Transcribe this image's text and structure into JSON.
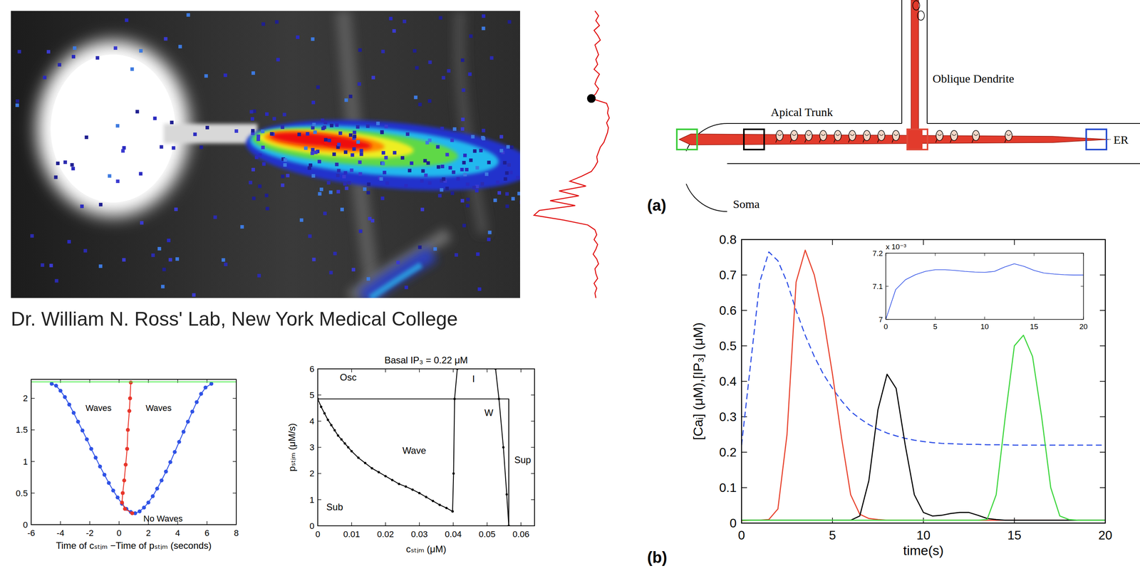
{
  "photo": {
    "caption": "Dr. William N. Ross' Lab, New York Medical College",
    "trace": {
      "lim": [
        0,
        100
      ],
      "dot_index": 18,
      "color": "#e01010",
      "values": [
        70,
        74,
        71,
        75,
        69,
        73,
        76,
        70,
        72,
        74,
        71,
        73,
        69,
        75,
        72,
        70,
        74,
        71,
        66,
        83,
        85,
        84,
        86,
        83,
        85,
        84,
        82,
        80,
        76,
        74,
        72,
        73,
        70,
        66,
        55,
        42,
        60,
        30,
        52,
        20,
        48,
        8,
        2,
        35,
        62,
        70,
        72,
        69,
        73,
        71,
        68,
        72,
        74,
        70,
        71,
        73,
        69,
        72,
        70,
        71
      ]
    }
  },
  "diagram": {
    "panel_label": "(a)",
    "labels": {
      "oblique": "Oblique Dendrite",
      "trunk": "Apical Trunk",
      "soma": "Soma",
      "er": "ER"
    },
    "boxes": [
      {
        "color": "#3dcc3d"
      },
      {
        "color": "#000000"
      },
      {
        "color": "#e04a3a"
      },
      {
        "color": "#2a4fd0"
      }
    ]
  },
  "chart_data": [
    {
      "type": "line",
      "xlabel": "Time of cₛₜᵢₘ −Time of pₛₜᵢₘ (seconds)",
      "xlim": [
        -6,
        8
      ],
      "xticks": [
        -6,
        -4,
        -2,
        0,
        2,
        4,
        6,
        8
      ],
      "ylim": [
        0,
        2.3
      ],
      "yticks": [
        0,
        0.5,
        1,
        1.5,
        2
      ],
      "grid": false,
      "annotations": [
        {
          "text": "Waves",
          "x": -1.4,
          "y": 1.8
        },
        {
          "text": "Waves",
          "x": 2.7,
          "y": 1.8
        },
        {
          "text": "No Waves",
          "x": 3.0,
          "y": 0.05
        }
      ],
      "series": [
        {
          "color": "#2f52e6",
          "marker": "dot",
          "line_style": "solid",
          "x": [
            -4.6,
            -4.3,
            -4,
            -3.7,
            -3.4,
            -3.1,
            -2.8,
            -2.5,
            -2.2,
            -1.9,
            -1.6,
            -1.3,
            -1,
            -0.7,
            -0.4,
            -0.1,
            0.2,
            0.5,
            0.8,
            1.1,
            1.4,
            1.7,
            2,
            2.3,
            2.6,
            2.9,
            3.2,
            3.5,
            3.8,
            4.1,
            4.4,
            4.7,
            5,
            5.3,
            5.6,
            5.9,
            6.3
          ],
          "values": [
            2.23,
            2.2,
            2.12,
            2.02,
            1.9,
            1.77,
            1.63,
            1.49,
            1.35,
            1.2,
            1.06,
            0.92,
            0.79,
            0.66,
            0.54,
            0.43,
            0.33,
            0.25,
            0.2,
            0.18,
            0.21,
            0.27,
            0.35,
            0.45,
            0.57,
            0.7,
            0.84,
            0.99,
            1.15,
            1.31,
            1.47,
            1.63,
            1.79,
            1.94,
            2.07,
            2.17,
            2.23
          ]
        },
        {
          "color": "#e8352a",
          "marker": "dot",
          "line_style": "solid",
          "x": [
            0.9,
            0.4,
            0.2,
            0.25,
            0.35,
            0.45,
            0.55,
            0.6,
            0.7,
            0.75,
            0.8
          ],
          "values": [
            0.18,
            0.25,
            0.35,
            0.5,
            0.7,
            0.95,
            1.2,
            1.5,
            1.8,
            2.0,
            2.25
          ]
        },
        {
          "color": "#44ee44",
          "marker": "none",
          "line_style": "solid",
          "x": [
            -6,
            8
          ],
          "values": [
            2.26,
            2.26
          ]
        }
      ]
    },
    {
      "type": "line",
      "title": "Basal IP₃ = 0.22 μM",
      "xlabel": "cₛₜᵢₘ (μM)",
      "ylabel": "pₛₜᵢₘ (μM/s)",
      "xlim": [
        0,
        0.064
      ],
      "xticks": [
        0,
        0.01,
        0.02,
        0.03,
        0.04,
        0.05,
        0.06
      ],
      "ylim": [
        0,
        6
      ],
      "yticks": [
        0,
        1,
        2,
        3,
        4,
        5,
        6
      ],
      "grid": false,
      "annotations": [
        {
          "text": "Osc",
          "x": 0.009,
          "y": 5.55
        },
        {
          "text": "I",
          "x": 0.046,
          "y": 5.5
        },
        {
          "text": "W",
          "x": 0.0505,
          "y": 4.2
        },
        {
          "text": "Wave",
          "x": 0.0285,
          "y": 2.75
        },
        {
          "text": "Sub",
          "x": 0.005,
          "y": 0.6
        },
        {
          "text": "Sup",
          "x": 0.0605,
          "y": 2.4
        }
      ],
      "series": [
        {
          "color": "#000000",
          "marker": "dot",
          "line_style": "solid",
          "x": [
            0,
            0.001,
            0.002,
            0.003,
            0.004,
            0.005,
            0.006,
            0.007,
            0.008,
            0.009,
            0.01,
            0.012,
            0.014,
            0.016,
            0.018,
            0.02,
            0.022,
            0.024,
            0.026,
            0.028,
            0.03,
            0.032,
            0.034,
            0.036,
            0.038,
            0.0398
          ],
          "values": [
            4.85,
            4.55,
            4.3,
            4.05,
            3.85,
            3.65,
            3.45,
            3.3,
            3.15,
            3.0,
            2.85,
            2.6,
            2.4,
            2.2,
            2.05,
            1.9,
            1.75,
            1.6,
            1.5,
            1.38,
            1.25,
            1.1,
            0.95,
            0.8,
            0.68,
            0.55
          ]
        },
        {
          "color": "#000000",
          "marker": "dot",
          "line_style": "solid",
          "x": [
            0.0398,
            0.0401,
            0.0404,
            0.0412
          ],
          "values": [
            0.55,
            2,
            4.85,
            6
          ]
        },
        {
          "color": "#000000",
          "marker": "dot",
          "line_style": "solid",
          "x": [
            0.0525,
            0.0535,
            0.0548,
            0.0558,
            0.0564
          ],
          "values": [
            6,
            4.85,
            3,
            1.2,
            0
          ]
        },
        {
          "color": "#000000",
          "marker": "none",
          "line_style": "solid",
          "x": [
            0,
            0.0564,
            0.0564
          ],
          "values": [
            4.85,
            4.85,
            0
          ]
        }
      ]
    },
    {
      "type": "line",
      "panel_label": "(b)",
      "xlabel": "time(s)",
      "ylabel": "[Caᵢ] (μM),[IP₃] (μM)",
      "xlim": [
        0,
        20
      ],
      "xticks": [
        0,
        5,
        10,
        15,
        20
      ],
      "ylim": [
        0,
        0.8
      ],
      "yticks": [
        0,
        0.1,
        0.2,
        0.3,
        0.4,
        0.5,
        0.6,
        0.7,
        0.8
      ],
      "grid": false,
      "x": [
        0,
        0.5,
        1,
        1.5,
        2,
        2.5,
        3,
        3.5,
        4,
        4.5,
        5,
        5.5,
        6,
        6.5,
        7,
        7.5,
        8,
        8.5,
        9,
        9.5,
        10,
        10.5,
        11,
        11.5,
        12,
        12.5,
        13,
        13.5,
        14,
        14.5,
        15,
        15.5,
        16,
        16.5,
        17,
        17.5,
        18,
        18.5,
        19,
        19.5,
        20
      ],
      "series": [
        {
          "color": "#2e4fe6",
          "marker": "none",
          "line_style": "dashed",
          "values": [
            0.22,
            0.45,
            0.68,
            0.765,
            0.74,
            0.68,
            0.6,
            0.53,
            0.47,
            0.42,
            0.38,
            0.345,
            0.315,
            0.295,
            0.278,
            0.265,
            0.254,
            0.246,
            0.239,
            0.234,
            0.23,
            0.227,
            0.225,
            0.224,
            0.223,
            0.222,
            0.222,
            0.221,
            0.221,
            0.221,
            0.22,
            0.22,
            0.22,
            0.22,
            0.22,
            0.22,
            0.22,
            0.22,
            0.22,
            0.22,
            0.22
          ]
        },
        {
          "color": "#e8432e",
          "marker": "none",
          "line_style": "solid",
          "values": [
            0.007,
            0.008,
            0.008,
            0.01,
            0.04,
            0.25,
            0.68,
            0.77,
            0.7,
            0.58,
            0.42,
            0.24,
            0.08,
            0.025,
            0.013,
            0.01,
            0.008,
            0.008,
            0.008,
            0.008,
            0.008,
            0.008,
            0.008,
            0.008,
            0.008,
            0.008,
            0.008,
            0.008,
            0.008,
            0.008,
            0.008,
            0.008,
            0.008,
            0.008,
            0.008,
            0.008,
            0.008,
            0.008,
            0.008,
            0.008,
            0.008
          ]
        },
        {
          "color": "#000000",
          "marker": "none",
          "line_style": "solid",
          "values": [
            0.008,
            0.008,
            0.008,
            0.008,
            0.008,
            0.008,
            0.008,
            0.008,
            0.008,
            0.008,
            0.008,
            0.008,
            0.008,
            0.02,
            0.12,
            0.32,
            0.42,
            0.38,
            0.22,
            0.08,
            0.03,
            0.02,
            0.022,
            0.027,
            0.03,
            0.03,
            0.022,
            0.013,
            0.01,
            0.008,
            0.008,
            0.008,
            0.008,
            0.008,
            0.008,
            0.008,
            0.008,
            0.008,
            0.008,
            0.008,
            0.008
          ]
        },
        {
          "color": "#3ed63e",
          "marker": "none",
          "line_style": "solid",
          "values": [
            0.008,
            0.008,
            0.008,
            0.008,
            0.008,
            0.008,
            0.008,
            0.008,
            0.008,
            0.008,
            0.008,
            0.008,
            0.008,
            0.008,
            0.008,
            0.008,
            0.008,
            0.008,
            0.008,
            0.008,
            0.008,
            0.008,
            0.008,
            0.008,
            0.008,
            0.008,
            0.008,
            0.01,
            0.08,
            0.3,
            0.5,
            0.53,
            0.47,
            0.3,
            0.1,
            0.02,
            0.01,
            0.008,
            0.008,
            0.008,
            0.008
          ]
        }
      ]
    },
    {
      "type": "line",
      "y_exponent_label": "x 10⁻³",
      "xlim": [
        0,
        20
      ],
      "xticks": [
        0,
        5,
        10,
        15,
        20
      ],
      "ylim": [
        7,
        7.2
      ],
      "yticks": [
        7,
        7.1,
        7.2
      ],
      "grid": false,
      "x": [
        0,
        1,
        2,
        3,
        4,
        5,
        6,
        7,
        8,
        9,
        10,
        11,
        12,
        13,
        14,
        15,
        16,
        17,
        18,
        19,
        20
      ],
      "series": [
        {
          "color": "#2e4fe6",
          "marker": "none",
          "line_style": "solid",
          "values": [
            7.0,
            7.09,
            7.12,
            7.135,
            7.145,
            7.15,
            7.15,
            7.148,
            7.145,
            7.143,
            7.142,
            7.145,
            7.158,
            7.168,
            7.16,
            7.148,
            7.14,
            7.137,
            7.135,
            7.134,
            7.134
          ]
        }
      ]
    }
  ]
}
